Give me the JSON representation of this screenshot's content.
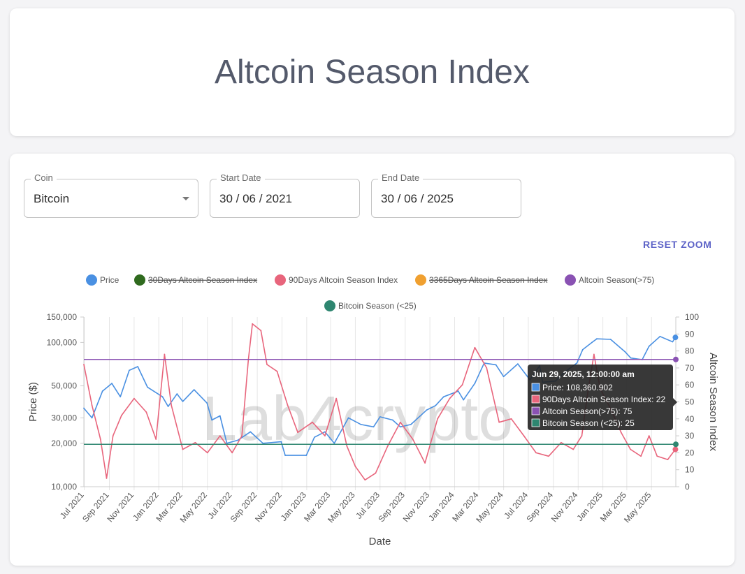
{
  "page": {
    "title": "Altcoin Season Index"
  },
  "filters": {
    "coin": {
      "label": "Coin",
      "value": "Bitcoin"
    },
    "start_date": {
      "label": "Start Date",
      "value": "30 / 06 / 2021"
    },
    "end_date": {
      "label": "End Date",
      "value": "30 / 06 / 2025"
    }
  },
  "reset_zoom": "RESET ZOOM",
  "watermark": "Lab4crypto",
  "legend": [
    {
      "label": "Price",
      "color": "#4a90e2",
      "hidden": false
    },
    {
      "label": "30Days Altcoin Season Index",
      "color": "#2f6a1e",
      "hidden": true
    },
    {
      "label": "90Days Altcoin Season Index",
      "color": "#e8657c",
      "hidden": false
    },
    {
      "label": "3365Days Altcoin Season Index",
      "color": "#f0a030",
      "hidden": true
    },
    {
      "label": "Altcoin Season(>75)",
      "color": "#8a52b3",
      "hidden": false
    },
    {
      "label": "Bitcoin Season (<25)",
      "color": "#2e8670",
      "hidden": false
    }
  ],
  "tooltip": {
    "title": "Jun 29, 2025, 12:00:00 am",
    "lines": [
      {
        "text": "Price: 108,360.902",
        "color": "#4a90e2"
      },
      {
        "text": "90Days Altcoin Season Index: 22",
        "color": "#e8657c"
      },
      {
        "text": "Altcoin Season(>75): 75",
        "color": "#8a52b3"
      },
      {
        "text": "Bitcoin Season (<25): 25",
        "color": "#2e8670"
      }
    ]
  },
  "chart_data": {
    "type": "line",
    "xlabel": "Date",
    "ylabel_left": "Price ($)",
    "ylabel_right": "Altcoin Season Index",
    "x_range": [
      "2021-06-30",
      "2025-06-30"
    ],
    "y_left_scale": "log",
    "y_left_range": [
      10000,
      150000
    ],
    "y_left_ticks": [
      {
        "value": 10000,
        "label": "10,000"
      },
      {
        "value": 20000,
        "label": "20,000"
      },
      {
        "value": 30000,
        "label": "30,000"
      },
      {
        "value": 50000,
        "label": "50,000"
      },
      {
        "value": 100000,
        "label": "100,000"
      },
      {
        "value": 150000,
        "label": "150,000"
      }
    ],
    "y_right_range": [
      0,
      100
    ],
    "y_right_ticks": [
      0,
      10,
      20,
      30,
      40,
      50,
      60,
      70,
      80,
      90,
      100
    ],
    "x_ticks": [
      {
        "date": "2021-07-01",
        "label": "Jul 2021"
      },
      {
        "date": "2021-09-01",
        "label": "Sep 2021"
      },
      {
        "date": "2021-11-01",
        "label": "Nov 2021"
      },
      {
        "date": "2022-01-01",
        "label": "Jan 2022"
      },
      {
        "date": "2022-03-01",
        "label": "Mar 2022"
      },
      {
        "date": "2022-05-01",
        "label": "May 2022"
      },
      {
        "date": "2022-07-01",
        "label": "Jul 2022"
      },
      {
        "date": "2022-09-01",
        "label": "Sep 2022"
      },
      {
        "date": "2022-11-01",
        "label": "Nov 2022"
      },
      {
        "date": "2023-01-01",
        "label": "Jan 2023"
      },
      {
        "date": "2023-03-01",
        "label": "Mar 2023"
      },
      {
        "date": "2023-05-01",
        "label": "May 2023"
      },
      {
        "date": "2023-07-01",
        "label": "Jul 2023"
      },
      {
        "date": "2023-09-01",
        "label": "Sep 2023"
      },
      {
        "date": "2023-11-01",
        "label": "Nov 2023"
      },
      {
        "date": "2024-01-01",
        "label": "Jan 2024"
      },
      {
        "date": "2024-03-01",
        "label": "Mar 2024"
      },
      {
        "date": "2024-05-01",
        "label": "May 2024"
      },
      {
        "date": "2024-07-01",
        "label": "Jul 2024"
      },
      {
        "date": "2024-09-01",
        "label": "Sep 2024"
      },
      {
        "date": "2024-11-01",
        "label": "Nov 2024"
      },
      {
        "date": "2025-01-01",
        "label": "Jan 2025"
      },
      {
        "date": "2025-03-01",
        "label": "Mar 2025"
      },
      {
        "date": "2025-05-01",
        "label": "May 2025"
      }
    ],
    "grid": true,
    "legend_position": "top-center",
    "series": [
      {
        "name": "Price",
        "axis": "left",
        "color": "#4a90e2",
        "points": [
          [
            "2021-06-30",
            35000
          ],
          [
            "2021-07-20",
            30000
          ],
          [
            "2021-08-15",
            46000
          ],
          [
            "2021-09-07",
            52000
          ],
          [
            "2021-09-28",
            42000
          ],
          [
            "2021-10-20",
            64000
          ],
          [
            "2021-11-10",
            68000
          ],
          [
            "2021-12-04",
            49000
          ],
          [
            "2022-01-10",
            42000
          ],
          [
            "2022-01-24",
            36000
          ],
          [
            "2022-02-15",
            44000
          ],
          [
            "2022-03-01",
            39000
          ],
          [
            "2022-03-29",
            47000
          ],
          [
            "2022-04-30",
            38000
          ],
          [
            "2022-05-12",
            29000
          ],
          [
            "2022-06-01",
            31000
          ],
          [
            "2022-06-18",
            20000
          ],
          [
            "2022-07-15",
            21000
          ],
          [
            "2022-08-15",
            24000
          ],
          [
            "2022-09-15",
            20000
          ],
          [
            "2022-10-30",
            20500
          ],
          [
            "2022-11-09",
            16500
          ],
          [
            "2022-12-31",
            16500
          ],
          [
            "2023-01-20",
            22000
          ],
          [
            "2023-02-15",
            24000
          ],
          [
            "2023-03-10",
            20000
          ],
          [
            "2023-04-14",
            30000
          ],
          [
            "2023-05-15",
            27000
          ],
          [
            "2023-06-15",
            26000
          ],
          [
            "2023-07-01",
            30500
          ],
          [
            "2023-08-01",
            29000
          ],
          [
            "2023-08-20",
            26000
          ],
          [
            "2023-09-15",
            27000
          ],
          [
            "2023-10-24",
            34000
          ],
          [
            "2023-11-15",
            36500
          ],
          [
            "2023-12-05",
            42000
          ],
          [
            "2024-01-10",
            46000
          ],
          [
            "2024-01-23",
            40000
          ],
          [
            "2024-02-20",
            52000
          ],
          [
            "2024-03-14",
            72000
          ],
          [
            "2024-04-12",
            70000
          ],
          [
            "2024-05-01",
            58000
          ],
          [
            "2024-06-05",
            71000
          ],
          [
            "2024-07-05",
            55000
          ],
          [
            "2024-07-29",
            69000
          ],
          [
            "2024-08-05",
            53000
          ],
          [
            "2024-09-06",
            54000
          ],
          [
            "2024-10-01",
            63000
          ],
          [
            "2024-10-29",
            72000
          ],
          [
            "2024-11-12",
            89000
          ],
          [
            "2024-12-05",
            100000
          ],
          [
            "2024-12-17",
            106000
          ],
          [
            "2025-01-20",
            105000
          ],
          [
            "2025-02-25",
            86000
          ],
          [
            "2025-03-11",
            78000
          ],
          [
            "2025-04-08",
            76000
          ],
          [
            "2025-04-25",
            94000
          ],
          [
            "2025-05-22",
            110000
          ],
          [
            "2025-06-22",
            101000
          ],
          [
            "2025-06-29",
            108360.902
          ]
        ]
      },
      {
        "name": "90Days Altcoin Season Index",
        "axis": "right",
        "color": "#e8657c",
        "points": [
          [
            "2021-06-30",
            72
          ],
          [
            "2021-07-20",
            48
          ],
          [
            "2021-08-10",
            28
          ],
          [
            "2021-08-25",
            5
          ],
          [
            "2021-09-10",
            30
          ],
          [
            "2021-10-01",
            42
          ],
          [
            "2021-11-01",
            52
          ],
          [
            "2021-12-01",
            44
          ],
          [
            "2021-12-25",
            28
          ],
          [
            "2022-01-15",
            78
          ],
          [
            "2022-02-01",
            48
          ],
          [
            "2022-03-01",
            22
          ],
          [
            "2022-04-01",
            26
          ],
          [
            "2022-05-01",
            20
          ],
          [
            "2022-06-01",
            30
          ],
          [
            "2022-07-01",
            20
          ],
          [
            "2022-07-25",
            30
          ],
          [
            "2022-08-10",
            75
          ],
          [
            "2022-08-20",
            96
          ],
          [
            "2022-09-10",
            92
          ],
          [
            "2022-09-25",
            72
          ],
          [
            "2022-10-20",
            68
          ],
          [
            "2022-11-15",
            48
          ],
          [
            "2022-12-10",
            32
          ],
          [
            "2023-01-15",
            38
          ],
          [
            "2023-02-15",
            30
          ],
          [
            "2023-03-15",
            52
          ],
          [
            "2023-04-10",
            24
          ],
          [
            "2023-05-01",
            12
          ],
          [
            "2023-05-25",
            4
          ],
          [
            "2023-06-20",
            8
          ],
          [
            "2023-07-20",
            24
          ],
          [
            "2023-08-20",
            38
          ],
          [
            "2023-09-20",
            28
          ],
          [
            "2023-10-20",
            14
          ],
          [
            "2023-11-20",
            40
          ],
          [
            "2023-12-20",
            52
          ],
          [
            "2024-01-20",
            60
          ],
          [
            "2024-02-20",
            82
          ],
          [
            "2024-03-20",
            70
          ],
          [
            "2024-04-20",
            38
          ],
          [
            "2024-05-20",
            40
          ],
          [
            "2024-06-20",
            30
          ],
          [
            "2024-07-20",
            20
          ],
          [
            "2024-08-20",
            18
          ],
          [
            "2024-09-20",
            26
          ],
          [
            "2024-10-20",
            22
          ],
          [
            "2024-11-10",
            30
          ],
          [
            "2024-11-25",
            56
          ],
          [
            "2024-12-10",
            78
          ],
          [
            "2024-12-25",
            58
          ],
          [
            "2025-01-20",
            46
          ],
          [
            "2025-02-15",
            32
          ],
          [
            "2025-03-10",
            22
          ],
          [
            "2025-04-05",
            18
          ],
          [
            "2025-04-25",
            30
          ],
          [
            "2025-05-15",
            18
          ],
          [
            "2025-06-10",
            16
          ],
          [
            "2025-06-29",
            22
          ]
        ]
      },
      {
        "name": "Altcoin Season(>75)",
        "axis": "right",
        "color": "#8a52b3",
        "constant": 75
      },
      {
        "name": "Bitcoin Season (<25)",
        "axis": "right",
        "color": "#2e8670",
        "constant": 25
      }
    ]
  }
}
